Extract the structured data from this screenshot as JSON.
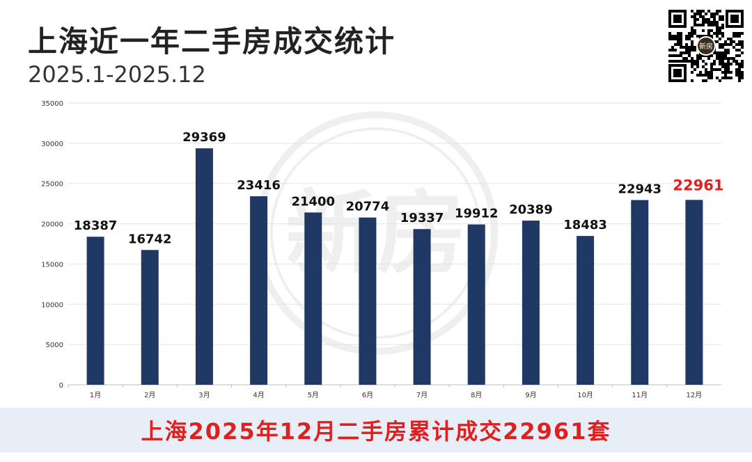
{
  "header": {
    "title": "上海近一年二手房成交统计",
    "subtitle": "2025.1-2025.12"
  },
  "qr": {
    "center_label": "新房"
  },
  "watermark": {
    "text": "新房"
  },
  "colors": {
    "bar": "#1f3864",
    "highlight_label": "#e0201e",
    "label": "#111111",
    "axis_text": "#333333",
    "gridline": "#e3e3e3",
    "footer_bg": "#e8eef8"
  },
  "chart_data": {
    "type": "bar",
    "categories": [
      "1月",
      "2月",
      "3月",
      "4月",
      "5月",
      "6月",
      "7月",
      "8月",
      "9月",
      "10月",
      "11月",
      "12月"
    ],
    "values": [
      18387,
      16742,
      29369,
      23416,
      21400,
      20774,
      19337,
      19912,
      20389,
      18483,
      22943,
      22961
    ],
    "data_labels": [
      "18387",
      "16742",
      "29369",
      "23416",
      "21400",
      "20774",
      "19337",
      "19912",
      "20389",
      "18483",
      "22943",
      "22961"
    ],
    "highlight_index": 11,
    "ylim": [
      0,
      35000
    ],
    "yticks": [
      0,
      5000,
      10000,
      15000,
      20000,
      25000,
      30000,
      35000
    ],
    "ytick_labels": [
      "0",
      "5000",
      "10000",
      "15000",
      "20000",
      "25000",
      "30000",
      "35000"
    ],
    "grid": true,
    "legend": "none",
    "title": "",
    "xlabel": "",
    "ylabel": ""
  },
  "footer": {
    "text": "上海2025年12月二手房累计成交22961套"
  }
}
